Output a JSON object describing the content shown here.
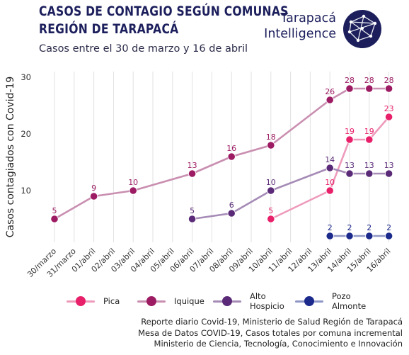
{
  "header": {
    "title_line1": "CASOS DE CONTAGIO SEGÚN COMUNAS",
    "title_line2": "REGIÓN DE TARAPACÁ",
    "subtitle": "Casos entre el 30 de marzo y 16 de abril",
    "brand_line1": "Tarapacá",
    "brand_line2": "Intelligence",
    "brand_color": "#1c1f5c"
  },
  "chart_data": {
    "type": "line",
    "title": "CASOS DE CONTAGIO SEGÚN COMUNAS REGIÓN DE TARAPACÁ",
    "subtitle": "Casos entre el 30 de marzo y 16 de abril",
    "ylabel": "Casos contagiados con Covid-19",
    "xlabel": "",
    "categories": [
      "30/marzo",
      "31/marzo",
      "01/abril",
      "02/abril",
      "03/abril",
      "04/abril",
      "05/abril",
      "06/abril",
      "07/abril",
      "08/abril",
      "09/abril",
      "10/abril",
      "11/abril",
      "12/abril",
      "13/abril",
      "14/abril",
      "15/abril",
      "16/abril"
    ],
    "ylim": [
      0,
      30
    ],
    "yticks": [
      10,
      20,
      30
    ],
    "grid": "vertical",
    "legend_position": "bottom",
    "series": [
      {
        "name": "Pica",
        "color": "#e8206a",
        "line_color": "#ee9bbb",
        "points": [
          [
            11,
            5
          ],
          [
            14,
            10
          ],
          [
            15,
            19
          ],
          [
            16,
            19
          ],
          [
            17,
            23
          ]
        ],
        "labels": [
          "5",
          "10",
          "19",
          "19",
          "23"
        ]
      },
      {
        "name": "Iquique",
        "color": "#9c1b63",
        "line_color": "#c98eb0",
        "points": [
          [
            0,
            5
          ],
          [
            2,
            9
          ],
          [
            4,
            10
          ],
          [
            7,
            13
          ],
          [
            9,
            16
          ],
          [
            11,
            18
          ],
          [
            14,
            26
          ],
          [
            15,
            28
          ],
          [
            16,
            28
          ],
          [
            17,
            28
          ]
        ],
        "labels": [
          "5",
          "9",
          "10",
          "13",
          "16",
          "18",
          "26",
          "28",
          "28",
          "28"
        ]
      },
      {
        "name": "Alto\nHospicio",
        "color": "#5a2a78",
        "line_color": "#a58bb6",
        "points": [
          [
            7,
            5
          ],
          [
            9,
            6
          ],
          [
            11,
            10
          ],
          [
            14,
            14
          ],
          [
            15,
            13
          ],
          [
            16,
            13
          ],
          [
            17,
            13
          ]
        ],
        "labels": [
          "5",
          "6",
          "10",
          "14",
          "13",
          "13",
          "13"
        ]
      },
      {
        "name": "Pozo\nAlmonte",
        "color": "#1c2a8c",
        "line_color": "#8f97c6",
        "points": [
          [
            14,
            2
          ],
          [
            15,
            2
          ],
          [
            16,
            2
          ],
          [
            17,
            2
          ]
        ],
        "labels": [
          "2",
          "2",
          "2",
          "2"
        ]
      }
    ]
  },
  "source": {
    "line1": "Reporte diario Covid-19, Ministerio de Salud Región de Tarapacá",
    "line2": "Mesa de Datos COVID-19, Casos totales por comuna incremental",
    "line3": "Ministerio de Ciencia, Tecnología, Conocimiento e Innovación"
  }
}
